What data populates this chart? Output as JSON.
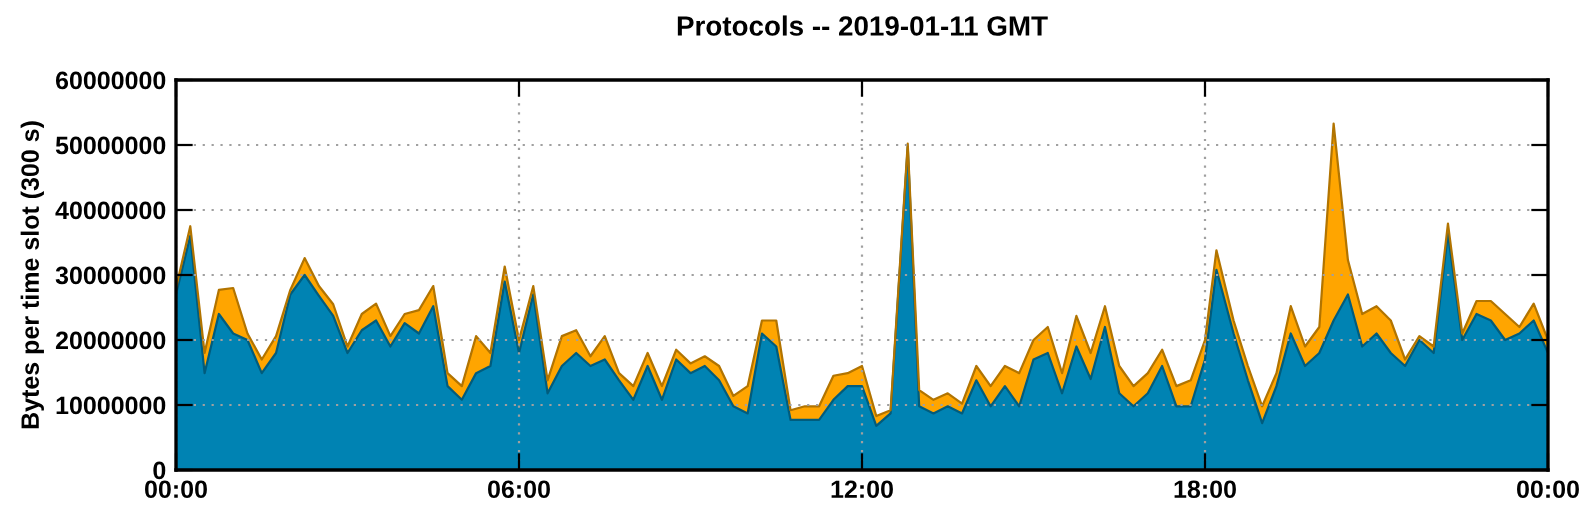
{
  "chart_data": {
    "type": "area",
    "title": "Protocols -- 2019-01-11 GMT",
    "ylabel": "Bytes per time slot (300 s)",
    "stacked": true,
    "grid": true,
    "x": [
      0,
      0.25,
      0.5,
      0.75,
      1,
      1.25,
      1.5,
      1.75,
      2,
      2.25,
      2.5,
      2.75,
      3,
      3.25,
      3.5,
      3.75,
      4,
      4.25,
      4.5,
      4.75,
      5,
      5.25,
      5.5,
      5.75,
      6,
      6.25,
      6.5,
      6.75,
      7,
      7.25,
      7.5,
      7.75,
      8,
      8.25,
      8.5,
      8.75,
      9,
      9.25,
      9.5,
      9.75,
      10,
      10.25,
      10.5,
      10.75,
      11,
      11.25,
      11.5,
      11.75,
      12,
      12.25,
      12.5,
      12.8,
      13,
      13.25,
      13.5,
      13.75,
      14,
      14.25,
      14.5,
      14.75,
      15,
      15.25,
      15.5,
      15.75,
      16,
      16.25,
      16.5,
      16.75,
      17,
      17.25,
      17.5,
      17.75,
      18,
      18.2,
      18.5,
      18.75,
      19,
      19.25,
      19.5,
      19.75,
      20,
      20.25,
      20.5,
      20.75,
      21,
      21.25,
      21.5,
      21.75,
      22,
      22.25,
      22.5,
      22.75,
      23,
      23.25,
      23.5,
      23.75,
      24
    ],
    "series": [
      {
        "color": "#0083b3",
        "values": [
          27000000,
          36000000,
          14900000,
          24000000,
          21000000,
          20000000,
          14900000,
          18000000,
          27000000,
          30000000,
          26800000,
          23700000,
          18000000,
          21500000,
          23000000,
          19000000,
          22600000,
          21000000,
          25200000,
          12900000,
          10800000,
          14900000,
          16000000,
          29000000,
          18000000,
          27000000,
          11800000,
          16000000,
          18000000,
          16000000,
          17000000,
          13800000,
          10800000,
          16000000,
          10800000,
          17000000,
          14900000,
          16000000,
          13800000,
          9800000,
          8700000,
          21000000,
          19000000,
          7700000,
          7700000,
          7700000,
          10800000,
          12900000,
          12900000,
          6800000,
          8700000,
          49700000,
          9800000,
          8700000,
          9800000,
          8700000,
          13800000,
          9800000,
          12900000,
          9800000,
          17000000,
          18000000,
          11800000,
          19000000,
          14000000,
          22000000,
          11800000,
          9800000,
          11800000,
          16000000,
          9800000,
          9800000,
          17000000,
          30800000,
          21000000,
          13800000,
          7200000,
          12900000,
          21000000,
          16000000,
          18000000,
          23000000,
          27000000,
          19000000,
          21000000,
          18000000,
          16000000,
          20000000,
          18000000,
          36400000,
          20000000,
          24000000,
          23000000,
          20000000,
          21000000,
          23000000,
          18000000
        ]
      },
      {
        "color": "#ffa500",
        "values": [
          1000000,
          1500000,
          3100000,
          3700000,
          7000000,
          1000000,
          2100000,
          2600000,
          700000,
          2600000,
          1500000,
          1800000,
          1000000,
          2500000,
          2600000,
          1600000,
          1400000,
          3600000,
          3100000,
          2000000,
          2100000,
          5700000,
          2000000,
          2300000,
          2000000,
          1300000,
          2000000,
          4600000,
          3500000,
          1500000,
          3600000,
          1100000,
          2100000,
          2000000,
          2100000,
          1500000,
          1500000,
          1500000,
          2200000,
          1600000,
          4200000,
          2000000,
          4000000,
          1500000,
          2100000,
          2100000,
          3700000,
          2000000,
          3100000,
          1500000,
          500000,
          500000,
          2500000,
          2100000,
          2000000,
          1500000,
          2200000,
          3100000,
          3100000,
          5100000,
          3000000,
          4000000,
          3100000,
          4700000,
          4000000,
          3200000,
          4200000,
          3100000,
          3100000,
          2500000,
          3100000,
          4000000,
          3000000,
          3000000,
          2000000,
          2200000,
          2600000,
          2000000,
          4200000,
          3000000,
          4000000,
          30300000,
          5300000,
          5000000,
          4200000,
          5000000,
          1000000,
          600000,
          1000000,
          1500000,
          1000000,
          2000000,
          3000000,
          4000000,
          1000000,
          2600000,
          2000000
        ]
      }
    ],
    "xlim": [
      0,
      24
    ],
    "xticks": [
      {
        "value": 0,
        "label": "00:00"
      },
      {
        "value": 6,
        "label": "06:00"
      },
      {
        "value": 12,
        "label": "12:00"
      },
      {
        "value": 18,
        "label": "18:00"
      },
      {
        "value": 24,
        "label": "00:00"
      }
    ],
    "ylim": [
      0,
      60000000
    ],
    "yticks": [
      0,
      10000000,
      20000000,
      30000000,
      40000000,
      50000000,
      60000000
    ]
  }
}
